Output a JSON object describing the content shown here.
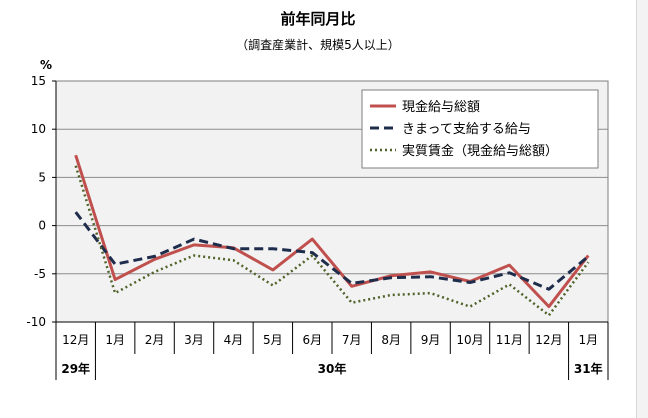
{
  "title": "前年同月比",
  "subtitle": "（調査産業計、規模5人以上）",
  "unit": "%",
  "chart_data": {
    "type": "line",
    "categories": [
      "12月",
      "1月",
      "2月",
      "3月",
      "4月",
      "5月",
      "6月",
      "7月",
      "8月",
      "9月",
      "10月",
      "11月",
      "12月",
      "1月"
    ],
    "year_labels": [
      {
        "label": "29年",
        "from": 0,
        "to": 0
      },
      {
        "label": "30年",
        "from": 1,
        "to": 12
      },
      {
        "label": "31年",
        "from": 13,
        "to": 13
      }
    ],
    "ylim": [
      -10,
      15
    ],
    "yticks": [
      15,
      10,
      5,
      0,
      -5,
      -10
    ],
    "grid": true,
    "legend_position": "top-right",
    "series": [
      {
        "name": "現金給与総額",
        "color": "#c0504d",
        "style": "solid",
        "values": [
          7.3,
          -5.6,
          -3.5,
          -2.0,
          -2.3,
          -4.6,
          -1.4,
          -6.3,
          -5.2,
          -4.8,
          -5.8,
          -4.1,
          -8.4,
          -3.1
        ]
      },
      {
        "name": "きまって支給する給与",
        "color": "#1f2d4d",
        "style": "dashed",
        "values": [
          1.4,
          -4.0,
          -3.2,
          -1.4,
          -2.4,
          -2.4,
          -2.8,
          -6.0,
          -5.4,
          -5.3,
          -5.9,
          -4.9,
          -6.6,
          -3.2
        ]
      },
      {
        "name": "実質賃金（現金給与総額）",
        "color": "#4f6228",
        "style": "dotted",
        "values": [
          6.2,
          -7.0,
          -4.8,
          -3.1,
          -3.6,
          -6.2,
          -3.1,
          -8.0,
          -7.2,
          -7.0,
          -8.4,
          -6.1,
          -9.3,
          -3.8
        ]
      }
    ]
  }
}
